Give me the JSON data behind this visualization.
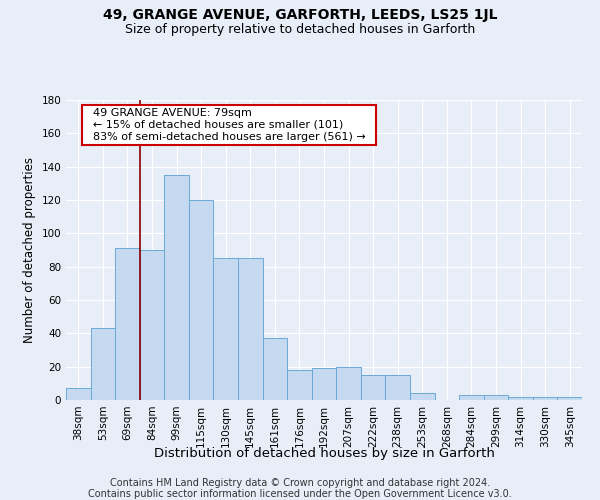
{
  "title": "49, GRANGE AVENUE, GARFORTH, LEEDS, LS25 1JL",
  "subtitle": "Size of property relative to detached houses in Garforth",
  "xlabel": "Distribution of detached houses by size in Garforth",
  "ylabel": "Number of detached properties",
  "categories": [
    "38sqm",
    "53sqm",
    "69sqm",
    "84sqm",
    "99sqm",
    "115sqm",
    "130sqm",
    "145sqm",
    "161sqm",
    "176sqm",
    "192sqm",
    "207sqm",
    "222sqm",
    "238sqm",
    "253sqm",
    "268sqm",
    "284sqm",
    "299sqm",
    "314sqm",
    "330sqm",
    "345sqm"
  ],
  "values": [
    7,
    43,
    91,
    90,
    135,
    120,
    85,
    85,
    37,
    18,
    19,
    20,
    15,
    15,
    4,
    0,
    3,
    3,
    2,
    2,
    2
  ],
  "bar_color": "#c5d9f0",
  "bar_edge_color": "#6aaad4",
  "vline_color": "#8b0000",
  "vline_pos": 2.5,
  "annotation_title": "49 GRANGE AVENUE: 79sqm",
  "annotation_line1": "← 15% of detached houses are smaller (101)",
  "annotation_line2": "83% of semi-detached houses are larger (561) →",
  "annotation_box_color": "#ffffff",
  "annotation_box_edge": "#cc0000",
  "ylim": [
    0,
    180
  ],
  "yticks": [
    0,
    20,
    40,
    60,
    80,
    100,
    120,
    140,
    160,
    180
  ],
  "bg_color": "#e8eef8",
  "plot_bg_color": "#e8eef8",
  "title_fontsize": 10,
  "subtitle_fontsize": 9,
  "xlabel_fontsize": 9.5,
  "ylabel_fontsize": 8.5,
  "tick_fontsize": 7.5,
  "annotation_fontsize": 8,
  "footer_fontsize": 7,
  "footer_line1": "Contains HM Land Registry data © Crown copyright and database right 2024.",
  "footer_line2": "Contains public sector information licensed under the Open Government Licence v3.0."
}
